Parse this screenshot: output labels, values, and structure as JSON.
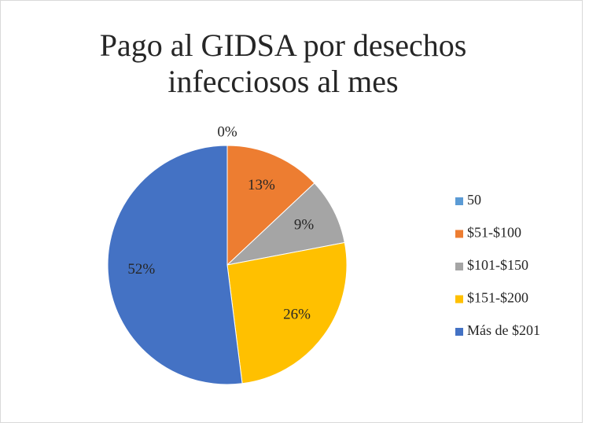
{
  "chart_data": {
    "type": "pie",
    "title": [
      "Pago al GIDSA por desechos",
      "infecciosos al mes"
    ],
    "categories": [
      "50",
      "$51-$100",
      "$101-$150",
      "$151-$200",
      "Más de $201"
    ],
    "values": [
      0,
      13,
      9,
      26,
      52
    ],
    "value_labels": [
      "0%",
      "13%",
      "9%",
      "26%",
      "52%"
    ],
    "colors": [
      "#5b9bd5",
      "#ed7d31",
      "#a5a5a5",
      "#ffc000",
      "#4472c4"
    ],
    "legend": "right"
  }
}
